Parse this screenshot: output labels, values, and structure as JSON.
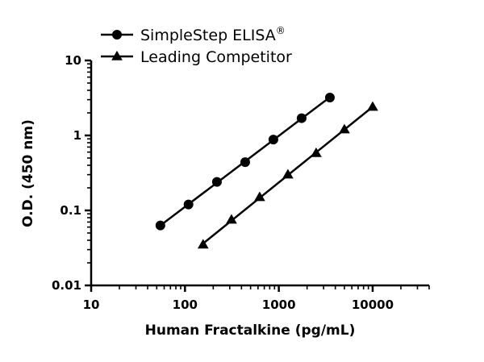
{
  "chart_data": {
    "type": "scatter",
    "x_scale": "log",
    "y_scale": "log",
    "xlabel": "Human Fractalkine (pg/mL)",
    "ylabel": "O.D. (450 nm)",
    "xlim": [
      10,
      40000
    ],
    "ylim": [
      0.01,
      10
    ],
    "x_ticks": [
      "10",
      "100",
      "1000",
      "10000"
    ],
    "y_ticks": [
      "0.01",
      "0.1",
      "1",
      "10"
    ],
    "grid": false,
    "legend_position": "top-left",
    "series": [
      {
        "name": "SimpleStep ELISA",
        "name_superscript": "®",
        "marker": "circle",
        "color": "#000000",
        "x": [
          54.7,
          109,
          219,
          438,
          875,
          1750,
          3500
        ],
        "y": [
          0.063,
          0.12,
          0.24,
          0.44,
          0.88,
          1.7,
          3.2
        ]
      },
      {
        "name": "Leading Competitor",
        "marker": "triangle",
        "color": "#000000",
        "x": [
          156,
          313,
          625,
          1250,
          2500,
          5000,
          10000
        ],
        "y": [
          0.035,
          0.075,
          0.15,
          0.3,
          0.58,
          1.2,
          2.4
        ]
      }
    ]
  }
}
